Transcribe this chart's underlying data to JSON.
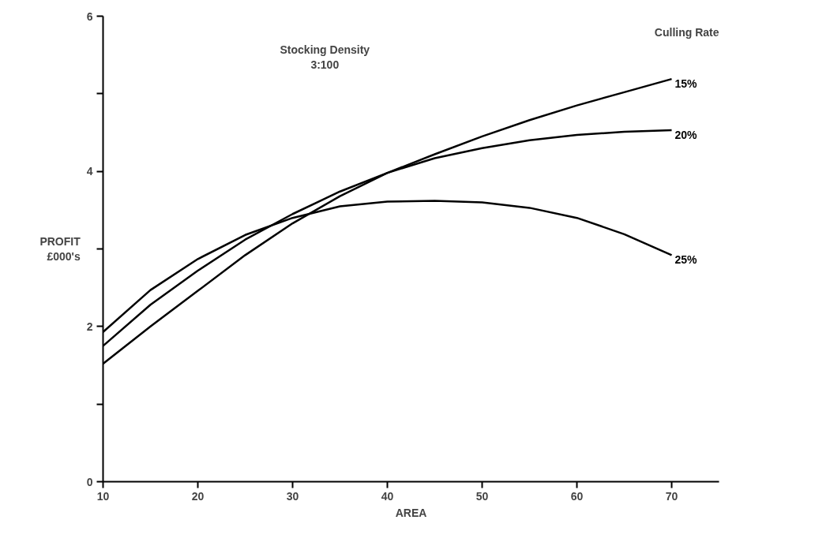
{
  "chart_data": {
    "type": "line",
    "xlabel": "AREA",
    "ylabel": "PROFIT\n£000's",
    "legend_title": "Culling Rate",
    "annotations": [
      "Stocking Density\n3:100"
    ],
    "x": [
      10,
      15,
      20,
      25,
      30,
      35,
      40,
      45,
      50,
      55,
      60,
      65,
      70
    ],
    "series": [
      {
        "name": "15%",
        "color": "#000000",
        "values": [
          1.52,
          2.0,
          2.46,
          2.92,
          3.33,
          3.68,
          3.98,
          4.22,
          4.45,
          4.66,
          4.85,
          5.02,
          5.19
        ]
      },
      {
        "name": "20%",
        "color": "#000000",
        "values": [
          1.75,
          2.28,
          2.72,
          3.12,
          3.45,
          3.74,
          3.98,
          4.17,
          4.3,
          4.4,
          4.47,
          4.51,
          4.53
        ]
      },
      {
        "name": "25%",
        "color": "#000000",
        "values": [
          1.93,
          2.47,
          2.87,
          3.18,
          3.4,
          3.55,
          3.61,
          3.62,
          3.6,
          3.53,
          3.4,
          3.19,
          2.92
        ]
      }
    ],
    "xlim": [
      10,
      75
    ],
    "ylim": [
      0,
      6
    ],
    "xticks": [
      10,
      20,
      30,
      40,
      50,
      60,
      70
    ],
    "yticks": [
      0,
      {
        "value": 1,
        "label": null
      },
      2,
      {
        "value": 3,
        "label": null
      },
      4,
      {
        "value": 5,
        "label": null
      },
      6
    ],
    "grid": false,
    "marker": "none",
    "line_style": "solid"
  }
}
